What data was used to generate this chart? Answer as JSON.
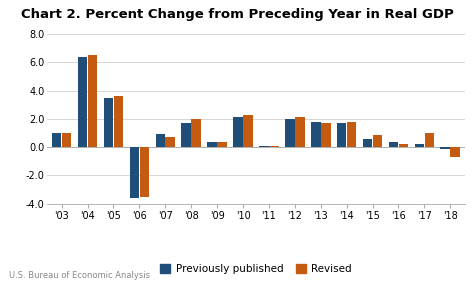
{
  "title": "Chart 2. Percent Change from Preceding Year in Real GDP",
  "years": [
    "'03",
    "'04",
    "'05",
    "'06",
    "'07",
    "'08",
    "'09",
    "'10",
    "'11",
    "'12",
    "'13",
    "'14",
    "'15",
    "'16",
    "'17",
    "'18"
  ],
  "previously_published": [
    1.0,
    6.4,
    3.5,
    -3.6,
    0.9,
    1.7,
    0.35,
    2.1,
    0.05,
    2.0,
    1.8,
    1.7,
    0.55,
    0.35,
    0.2,
    -0.1
  ],
  "revised": [
    1.0,
    6.5,
    3.6,
    -3.5,
    0.75,
    2.0,
    0.35,
    2.3,
    0.05,
    2.1,
    1.7,
    1.8,
    0.85,
    0.2,
    1.0,
    -0.7
  ],
  "bar_color_prev": "#1f4e79",
  "bar_color_rev": "#c55a11",
  "ylim": [
    -4.0,
    8.0
  ],
  "yticks": [
    -4.0,
    -2.0,
    0.0,
    2.0,
    4.0,
    6.0,
    8.0
  ],
  "legend_prev": "Previously published",
  "legend_rev": "Revised",
  "footnote": "U.S. Bureau of Economic Analysis",
  "background_color": "#ffffff",
  "grid_color": "#d0d0d0",
  "title_fontsize": 9.5,
  "tick_fontsize": 7.0,
  "legend_fontsize": 7.5,
  "footnote_fontsize": 6.0
}
